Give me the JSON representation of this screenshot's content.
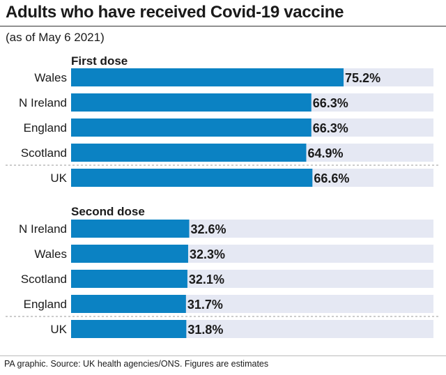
{
  "title": "Adults who have received Covid-19 vaccine",
  "subtitle": "(as of May 6 2021)",
  "source": "PA graphic. Source: UK health agencies/ONS. Figures are estimates",
  "colors": {
    "bar": "#0b82c3",
    "track": "#e5e8f3",
    "divider": "#9a9a9a"
  },
  "chart_data": {
    "type": "bar",
    "orientation": "horizontal",
    "xlim": [
      0,
      100
    ],
    "unit": "%",
    "grid": false,
    "groups": [
      {
        "name": "First dose",
        "categories": [
          "Wales",
          "N Ireland",
          "England",
          "Scotland",
          "UK"
        ],
        "values": [
          75.2,
          66.3,
          66.3,
          64.9,
          66.6
        ],
        "labels": [
          "75.2%",
          "66.3%",
          "66.3%",
          "64.9%",
          "66.6%"
        ]
      },
      {
        "name": "Second dose",
        "categories": [
          "N Ireland",
          "Wales",
          "Scotland",
          "England",
          "UK"
        ],
        "values": [
          32.6,
          32.3,
          32.1,
          31.7,
          31.8
        ],
        "labels": [
          "32.6%",
          "32.3%",
          "32.1%",
          "31.7%",
          "31.8%"
        ]
      }
    ]
  }
}
